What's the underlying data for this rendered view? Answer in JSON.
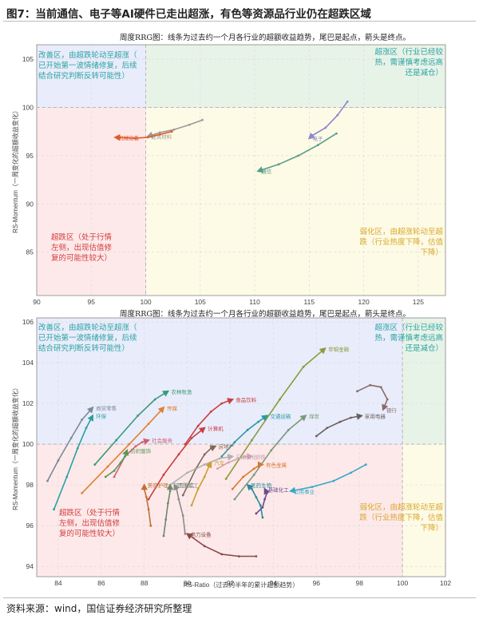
{
  "figure_title": "图7：当前通信、电子等AI硬件已走出超涨，有色等资源品行业仍在超跌区域",
  "source_note": "资料来源：wind，国信证券经济研究所整理",
  "colors": {
    "q_improving": "#e9ecfb",
    "q_leading": "#e8f3e8",
    "q_weakening": "#fdfbe6",
    "q_lagging": "#fde9ea",
    "txt_improving": "#2ba3a3",
    "txt_leading": "#2ba3a3",
    "txt_weakening": "#d9a72a",
    "txt_lagging": "#d43c3c"
  },
  "chart_data": [
    {
      "type": "scatter",
      "title": "周度RRG图：线条为过去约一个月各行业的超额收益趋势，尾巴是起点，箭头是终点。",
      "xlabel": "",
      "ylabel": "RS-Momentum（一周变化的超额收益变化）",
      "xlim": [
        90,
        127.5
      ],
      "ylim": [
        80.5,
        106.5
      ],
      "xticks": [
        90,
        95,
        100,
        105,
        110,
        115,
        120,
        125
      ],
      "yticks": [
        85,
        90,
        95,
        100,
        105
      ],
      "center": [
        100,
        100
      ],
      "quadrant_labels": {
        "improving": "改善区，由超跌轮动至超涨（已开始第一波情绪修复，后续结合研究判断反转可能性）",
        "leading": "超涨区（行业已经较热，需谨慎考虑远高还是减仓）",
        "lagging": "超跌区（处于行情左侧，出现估值修复的可能性较大）",
        "weakening": "弱化区，由超涨轮动至超跌（行业热度下降，估值下降）"
      },
      "quadrant_lines": {
        "improving": [
          "改善区，由超跌轮动至超涨（",
          "已开始第一波情绪修复，后续",
          "结合研究判断反转可能性）"
        ],
        "leading": [
          "超涨区（行业已经较",
          "热，需谨慎考虑远高",
          "还是减仓）"
        ],
        "lagging": [
          "超跌区（处于行情",
          "左侧，出现估值修",
          "复的可能性较大）"
        ],
        "weakening": [
          "弱化区，由超涨轮动至超",
          "跌（行业热度下降，估值",
          "下降）"
        ]
      },
      "series": [
        {
          "name": "电子",
          "color": "#8a88c9",
          "x": [
            118.5,
            117.6,
            116.5,
            115.3,
            115.0
          ],
          "y": [
            100.6,
            99.2,
            97.9,
            97.1,
            96.8
          ]
        },
        {
          "name": "通信",
          "color": "#5a9c8a",
          "x": [
            117.5,
            115.8,
            114.0,
            112.2,
            110.3
          ],
          "y": [
            97.3,
            96.1,
            95.0,
            94.1,
            93.4
          ]
        },
        {
          "name": "建筑材料",
          "color": "#9a9a9a",
          "x": [
            105.2,
            104.0,
            102.6,
            101.3,
            100.2
          ],
          "y": [
            98.7,
            98.2,
            97.7,
            97.4,
            97.0
          ]
        },
        {
          "name": "机械设备",
          "color": "#e05a2a",
          "x": [
            102.4,
            101.3,
            100.2,
            99.0,
            97.2
          ],
          "y": [
            97.5,
            97.2,
            96.9,
            96.8,
            96.9
          ]
        }
      ]
    },
    {
      "type": "scatter",
      "title": "周度RRG图：线条为过去约一个月各行业的超额收益趋势，尾巴是起点，箭头是终点。",
      "xlabel": "RS-Ratio（过去约半年的累计超额趋势）",
      "ylabel": "RS-Momentum（一周变化的超额收益变化）",
      "xlim": [
        83,
        102
      ],
      "ylim": [
        93.5,
        106.2
      ],
      "xticks": [
        84,
        86,
        88,
        90,
        92,
        94,
        96,
        98,
        100,
        102
      ],
      "yticks": [
        94,
        96,
        98,
        100,
        102,
        104,
        106
      ],
      "center": [
        100,
        100
      ],
      "quadrant_labels": {
        "improving": "改善区，由超跌轮动至超涨（已开始第一波情绪修复，后续结合研究判断反转可能性）",
        "leading": "超涨区（行业已经较热，需谨慎考虑远高还是减仓）",
        "lagging": "超跌区（处于行情左侧，出现估值修复的可能性较大）",
        "weakening": "弱化区，由超涨轮动至超跌（行业热度下降，估值下降）"
      },
      "quadrant_lines": {
        "improving": [
          "改善区，由超跌轮动至超涨（",
          "已开始第一波情绪修复，后续",
          "结合研究判断反转可能性）"
        ],
        "leading": [
          "超涨区（行业已经较",
          "热，需谨慎考虑远高",
          "还是减仓）"
        ],
        "lagging": [
          "超跌区（处于行情",
          "左侧，出现估值修",
          "复的可能性较大）"
        ],
        "weakening": [
          "弱化区，由超涨轮动至超",
          "跌（行业热度下降，估值",
          "下降）"
        ]
      },
      "series": [
        {
          "name": "非银金融",
          "color": "#8c9a3a",
          "x": [
            91.8,
            93.0,
            94.3,
            95.4,
            96.4
          ],
          "y": [
            98.3,
            100.2,
            102.2,
            103.8,
            104.7
          ]
        },
        {
          "name": "银行",
          "color": "#8a6a6a",
          "x": [
            97.9,
            98.5,
            99.0,
            99.3,
            99.1
          ],
          "y": [
            102.6,
            102.9,
            102.8,
            102.2,
            101.7
          ]
        },
        {
          "name": "家用电器",
          "color": "#6b6060",
          "x": [
            96.0,
            96.5,
            97.1,
            97.6,
            98.1
          ],
          "y": [
            100.4,
            100.8,
            101.1,
            101.3,
            101.4
          ]
        },
        {
          "name": "交通运输",
          "color": "#2a9aa0",
          "x": [
            91.6,
            92.2,
            92.8,
            93.3,
            93.7
          ],
          "y": [
            99.4,
            100.1,
            100.7,
            101.1,
            101.4
          ]
        },
        {
          "name": "煤炭",
          "color": "#7a9a7a",
          "x": [
            92.2,
            93.1,
            93.9,
            94.7,
            95.5
          ],
          "y": [
            97.3,
            98.5,
            99.7,
            100.7,
            101.4
          ]
        },
        {
          "name": "公用事业",
          "color": "#3aa8c8",
          "x": [
            98.3,
            97.6,
            96.8,
            95.8,
            94.8
          ],
          "y": [
            99.0,
            98.6,
            98.2,
            97.9,
            97.7
          ]
        },
        {
          "name": "食品饮料",
          "color": "#c84040",
          "x": [
            89.9,
            90.5,
            91.1,
            91.6,
            92.1
          ],
          "y": [
            100.0,
            100.9,
            101.6,
            102.0,
            102.2
          ]
        },
        {
          "name": "农林牧渔",
          "color": "#3a9a7a",
          "x": [
            85.7,
            86.7,
            87.7,
            88.5,
            89.1
          ],
          "y": [
            99.0,
            100.2,
            101.4,
            102.2,
            102.6
          ]
        },
        {
          "name": "商贸零售",
          "color": "#7a8a9a",
          "x": [
            83.5,
            84.0,
            84.6,
            85.1,
            85.6
          ],
          "y": [
            98.2,
            99.2,
            100.3,
            101.2,
            101.8
          ]
        },
        {
          "name": "环保",
          "color": "#2aa0a0",
          "x": [
            83.8,
            84.4,
            84.9,
            85.3,
            85.6
          ],
          "y": [
            96.8,
            98.4,
            99.8,
            100.8,
            101.4
          ]
        },
        {
          "name": "传媒",
          "color": "#e08030",
          "x": [
            85.1,
            86.3,
            87.3,
            88.2,
            88.9
          ],
          "y": [
            97.6,
            98.9,
            100.0,
            101.0,
            101.8
          ]
        },
        {
          "name": "计算机",
          "color": "#c84040",
          "x": [
            88.2,
            88.9,
            89.6,
            90.2,
            90.8
          ],
          "y": [
            97.3,
            98.5,
            99.5,
            100.3,
            100.8
          ]
        },
        {
          "name": "社会服务",
          "color": "#d06070",
          "x": [
            86.6,
            87.1,
            87.6,
            87.9,
            88.2
          ],
          "y": [
            98.4,
            99.4,
            99.9,
            100.1,
            100.2
          ]
        },
        {
          "name": "纺织服饰",
          "color": "#5a9a5a",
          "x": [
            86.2,
            86.6,
            86.9,
            87.1,
            87.2
          ],
          "y": [
            98.4,
            98.7,
            99.1,
            99.4,
            99.7
          ]
        },
        {
          "name": "房地产",
          "color": "#7a6a5a",
          "x": [
            89.8,
            90.4,
            90.8,
            91.1,
            91.3
          ],
          "y": [
            97.5,
            98.8,
            99.5,
            99.8,
            99.9
          ]
        },
        {
          "name": "石油石化",
          "color": "#b0b0b0",
          "x": [
            89.2,
            90.0,
            90.8,
            91.5,
            92.1
          ],
          "y": [
            98.0,
            98.6,
            99.0,
            99.3,
            99.4
          ]
        },
        {
          "name": "钢铁",
          "color": "#d4a0b0",
          "x": [
            91.4,
            91.9,
            92.4,
            92.7,
            93.0
          ],
          "y": [
            98.8,
            99.1,
            99.3,
            99.4,
            99.4
          ]
        },
        {
          "name": "汽车",
          "color": "#c8a030",
          "x": [
            90.2,
            90.5,
            90.8,
            91.0,
            91.1
          ],
          "y": [
            97.0,
            97.8,
            98.4,
            98.9,
            99.1
          ]
        },
        {
          "name": "有色金属",
          "color": "#d87a30",
          "x": [
            92.1,
            92.6,
            93.1,
            93.4,
            93.5
          ],
          "y": [
            97.8,
            98.4,
            98.8,
            99.0,
            99.0
          ]
        },
        {
          "name": "轻工制造",
          "color": "#6a8a6a",
          "x": [
            88.9,
            89.0,
            89.1,
            89.2,
            89.2
          ],
          "y": [
            95.5,
            96.3,
            97.1,
            97.7,
            98.0
          ]
        },
        {
          "name": "国防军工",
          "color": "#8a8a8a",
          "x": [
            89.9,
            89.8,
            89.6,
            89.5,
            89.4
          ],
          "y": [
            95.6,
            96.5,
            97.3,
            97.8,
            98.0
          ]
        },
        {
          "name": "美容护理",
          "color": "#c07030",
          "x": [
            88.3,
            88.2,
            88.1,
            88.0,
            88.0
          ],
          "y": [
            96.0,
            96.8,
            97.4,
            97.8,
            98.0
          ]
        },
        {
          "name": "基础化工",
          "color": "#6a4a8a",
          "x": [
            93.2,
            93.5,
            93.6,
            93.7,
            93.6
          ],
          "y": [
            96.6,
            96.9,
            97.3,
            97.6,
            97.8
          ]
        },
        {
          "name": "医药生物",
          "color": "#2a8a9a",
          "x": [
            93.5,
            93.4,
            93.2,
            93.0,
            92.8
          ],
          "y": [
            96.4,
            97.0,
            97.4,
            97.8,
            98.0
          ]
        },
        {
          "name": "电力设备",
          "color": "#8a4a4a",
          "x": [
            93.2,
            92.4,
            91.6,
            90.8,
            90.0
          ],
          "y": [
            94.5,
            94.5,
            94.6,
            95.0,
            95.6
          ]
        }
      ]
    }
  ]
}
